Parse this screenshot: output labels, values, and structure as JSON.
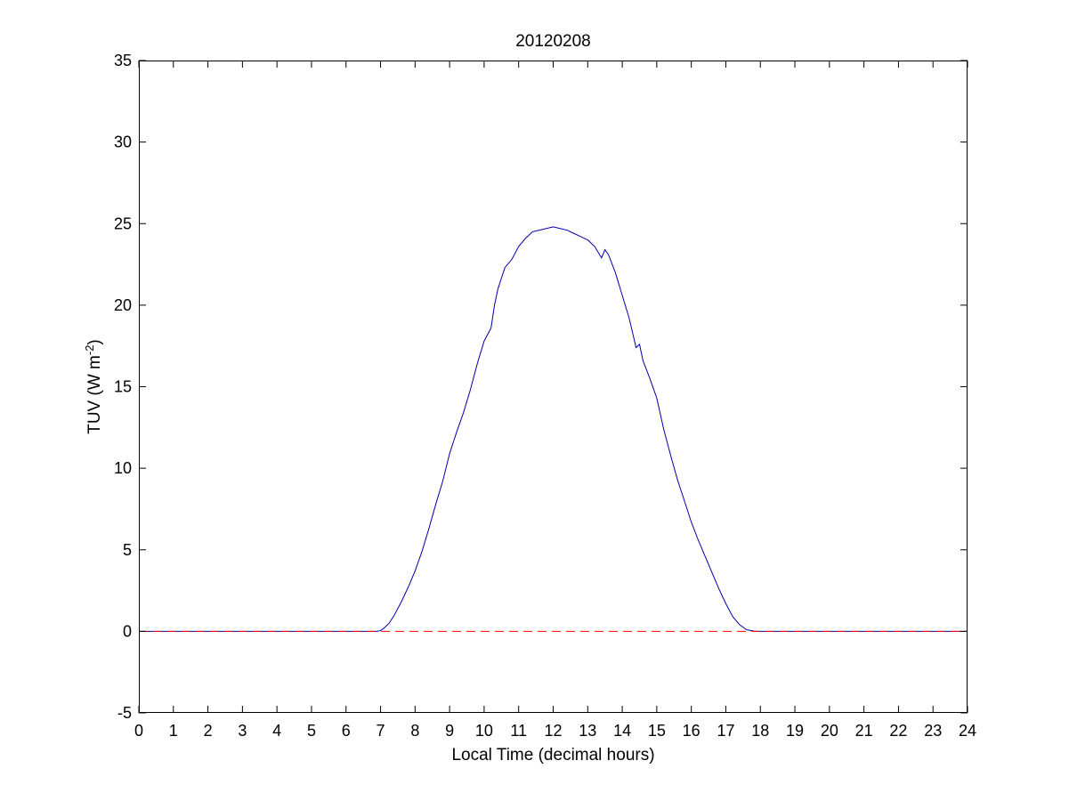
{
  "chart_data": {
    "type": "line",
    "title": "20120208",
    "xlabel": "Local Time (decimal hours)",
    "ylabel": {
      "text": "TUV (W m",
      "superscript": "-2",
      "suffix": ")"
    },
    "xlim": [
      0,
      24
    ],
    "ylim": [
      -5,
      35
    ],
    "xticks": [
      0,
      1,
      2,
      3,
      4,
      5,
      6,
      7,
      8,
      9,
      10,
      11,
      12,
      13,
      14,
      15,
      16,
      17,
      18,
      19,
      20,
      21,
      22,
      23,
      24
    ],
    "yticks": [
      -5,
      0,
      5,
      10,
      15,
      20,
      25,
      30,
      35
    ],
    "grid": false,
    "series": [
      {
        "color": "#0000aa",
        "style": "solid",
        "x": [
          0,
          6.9,
          7.0,
          7.1,
          7.25,
          7.4,
          7.6,
          7.8,
          8.0,
          8.2,
          8.4,
          8.6,
          8.8,
          9.0,
          9.2,
          9.4,
          9.6,
          9.8,
          10.0,
          10.2,
          10.3,
          10.4,
          10.6,
          10.8,
          11.0,
          11.2,
          11.4,
          11.6,
          11.8,
          12.0,
          12.2,
          12.4,
          12.6,
          12.8,
          13.0,
          13.2,
          13.4,
          13.5,
          13.6,
          13.8,
          14.0,
          14.2,
          14.4,
          14.5,
          14.6,
          14.8,
          15.0,
          15.2,
          15.4,
          15.6,
          15.8,
          16.0,
          16.2,
          16.4,
          16.6,
          16.8,
          17.0,
          17.2,
          17.4,
          17.6,
          17.8,
          17.9,
          18.0,
          24
        ],
        "y": [
          0,
          0,
          0.05,
          0.2,
          0.5,
          1.0,
          1.8,
          2.7,
          3.7,
          4.9,
          6.3,
          7.8,
          9.2,
          10.9,
          12.2,
          13.4,
          14.8,
          16.4,
          17.8,
          18.6,
          20.0,
          21.0,
          22.3,
          22.8,
          23.6,
          24.1,
          24.5,
          24.6,
          24.7,
          24.8,
          24.7,
          24.6,
          24.4,
          24.2,
          24.0,
          23.6,
          22.9,
          23.4,
          23.1,
          22.0,
          20.6,
          19.2,
          17.4,
          17.6,
          16.6,
          15.5,
          14.3,
          12.4,
          10.8,
          9.3,
          8.0,
          6.7,
          5.6,
          4.6,
          3.6,
          2.6,
          1.7,
          0.9,
          0.4,
          0.1,
          0.02,
          0,
          0,
          0
        ]
      },
      {
        "color": "#ff0000",
        "style": "dashed",
        "x": [
          0,
          24
        ],
        "y": [
          0,
          0
        ]
      }
    ]
  }
}
